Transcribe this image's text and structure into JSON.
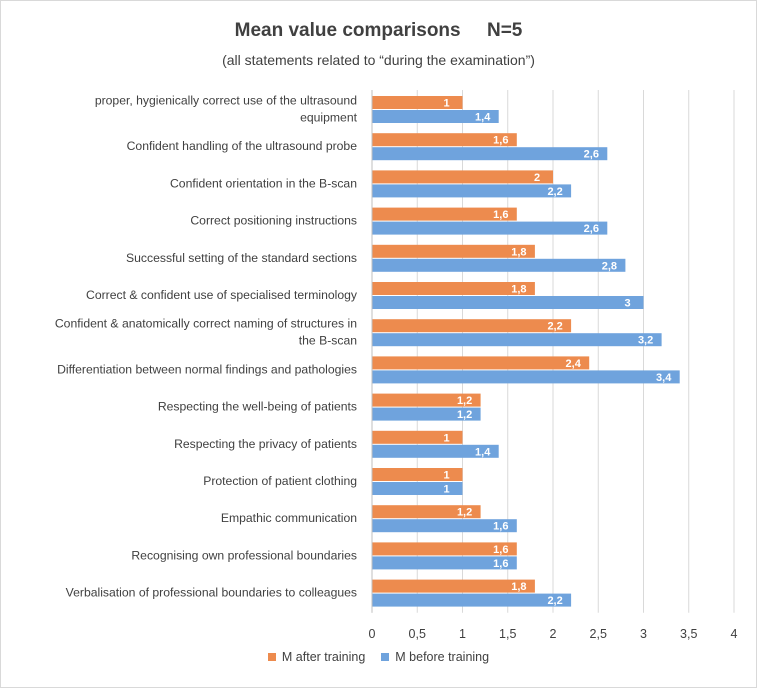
{
  "chart_data": {
    "type": "bar",
    "orientation": "horizontal",
    "title": "Mean value comparisons     N=5",
    "subtitle": "(all statements related to “during the examination”)",
    "categories": [
      [
        "proper, hygienically correct use of the ultrasound",
        "equipment"
      ],
      [
        "Confident handling of the ultrasound probe"
      ],
      [
        "Confident orientation in the B-scan"
      ],
      [
        "Correct positioning instructions"
      ],
      [
        "Successful setting of the standard sections"
      ],
      [
        "Correct & confident use of specialised terminology"
      ],
      [
        "Confident & anatomically correct naming of structures in",
        "the B-scan"
      ],
      [
        "Differentiation between normal findings and pathologies"
      ],
      [
        "Respecting the well-being of patients"
      ],
      [
        "Respecting the privacy of patients"
      ],
      [
        "Protection of patient clothing"
      ],
      [
        "Empathic communication"
      ],
      [
        "Recognising own professional boundaries"
      ],
      [
        "Verbalisation of professional boundaries to colleagues"
      ]
    ],
    "series": [
      {
        "name": "M after training",
        "color": "#ed8b4e",
        "values": [
          1,
          1.6,
          2,
          1.6,
          1.8,
          1.8,
          2.2,
          2.4,
          1.2,
          1,
          1,
          1.2,
          1.6,
          1.8
        ]
      },
      {
        "name": "M before training",
        "color": "#6fa3dd",
        "values": [
          1.4,
          2.6,
          2.2,
          2.6,
          2.8,
          3,
          3.2,
          3.4,
          1.2,
          1.4,
          1,
          1.6,
          1.6,
          2.2
        ]
      }
    ],
    "xlim": [
      0,
      4
    ],
    "xticks": [
      0,
      0.5,
      1,
      1.5,
      2,
      2.5,
      3,
      3.5,
      4
    ],
    "xtick_labels": [
      "0",
      "0,5",
      "1",
      "1,5",
      "2",
      "2,5",
      "3",
      "3,5",
      "4"
    ],
    "grid": true,
    "legend_position": "bottom"
  }
}
